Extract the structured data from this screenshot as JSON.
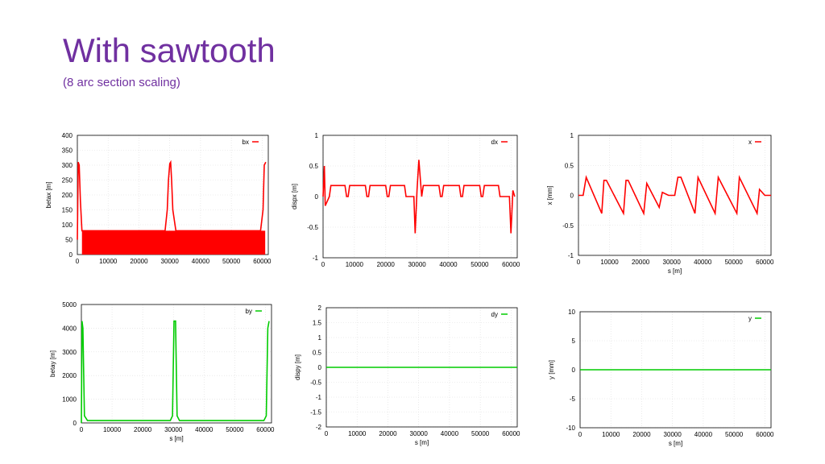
{
  "slide": {
    "title": "With sawtooth",
    "subtitle": "(8 arc section scaling)"
  },
  "chart_data": [
    {
      "type": "line",
      "title": "",
      "xlabel": "",
      "ylabel": "betax [m]",
      "xlim": [
        0,
        62000
      ],
      "ylim": [
        0,
        400
      ],
      "xticks": [
        "0",
        "10000",
        "20000",
        "30000",
        "40000",
        "50000",
        "60000"
      ],
      "yticks": [
        "0",
        "50",
        "100",
        "150",
        "200",
        "250",
        "300",
        "350",
        "400"
      ],
      "legend": "top-right",
      "grid": true,
      "series": [
        {
          "name": "bx",
          "color": "#ff0000",
          "x": [
            0,
            300,
            600,
            1000,
            1500,
            3000,
            10000,
            20000,
            28500,
            29200,
            29600,
            30000,
            30300,
            30600,
            31000,
            32000,
            40000,
            50000,
            59500,
            60300,
            60700,
            61200
          ],
          "y": [
            50,
            310,
            300,
            180,
            80,
            80,
            80,
            80,
            80,
            150,
            250,
            305,
            310,
            250,
            150,
            80,
            80,
            80,
            80,
            150,
            300,
            310
          ],
          "band_range": [
            0,
            80
          ]
        }
      ]
    },
    {
      "type": "line",
      "title": "",
      "xlabel": "",
      "ylabel": "dispx [m]",
      "xlim": [
        0,
        62000
      ],
      "ylim": [
        -1,
        1
      ],
      "xticks": [
        "0",
        "10000",
        "20000",
        "30000",
        "40000",
        "50000",
        "60000"
      ],
      "yticks": [
        "-1",
        "-0.5",
        "0",
        "0.5",
        "1"
      ],
      "legend": "top-right",
      "grid": true,
      "series": [
        {
          "name": "dx",
          "color": "#ff0000",
          "x": [
            0,
            400,
            700,
            2000,
            2500,
            7000,
            7500,
            8000,
            8500,
            13500,
            14000,
            14500,
            15000,
            20000,
            20500,
            21000,
            21500,
            26000,
            26500,
            29000,
            29400,
            30000,
            30600,
            31500,
            32000,
            32500,
            37000,
            37500,
            38000,
            38500,
            43500,
            44000,
            44500,
            45000,
            50000,
            50500,
            51000,
            51500,
            56000,
            56500,
            59500,
            60000,
            60600,
            61200
          ],
          "y": [
            0,
            0.5,
            -0.15,
            0,
            0.18,
            0.18,
            0,
            0,
            0.18,
            0.18,
            0,
            0,
            0.18,
            0.18,
            0,
            0,
            0.18,
            0.18,
            0,
            0,
            -0.6,
            0.1,
            0.6,
            0,
            0.18,
            0.18,
            0.18,
            0,
            0,
            0.18,
            0.18,
            0,
            0,
            0.18,
            0.18,
            0,
            0,
            0.18,
            0.18,
            0,
            0,
            -0.6,
            0.1,
            0
          ]
        }
      ]
    },
    {
      "type": "line",
      "title": "",
      "xlabel": "s [m]",
      "ylabel": "x [mm]",
      "xlim": [
        0,
        62000
      ],
      "ylim": [
        -1,
        1
      ],
      "xticks": [
        "0",
        "10000",
        "20000",
        "30000",
        "40000",
        "50000",
        "60000"
      ],
      "yticks": [
        "-1",
        "-0.5",
        "0",
        "0.5",
        "1"
      ],
      "legend": "top-right",
      "grid": true,
      "series": [
        {
          "name": "x",
          "color": "#ff0000",
          "x": [
            0,
            1500,
            2500,
            7500,
            8200,
            9000,
            14500,
            15300,
            16000,
            21000,
            22000,
            26000,
            27000,
            29000,
            31000,
            32000,
            33000,
            37500,
            38500,
            44000,
            45000,
            51000,
            51800,
            57500,
            58300,
            60000,
            62000
          ],
          "y": [
            0,
            0,
            0.3,
            -0.3,
            0.25,
            0.25,
            -0.3,
            0.25,
            0.25,
            -0.3,
            0.2,
            -0.2,
            0.05,
            0,
            0,
            0.3,
            0.3,
            -0.3,
            0.3,
            -0.3,
            0.3,
            -0.3,
            0.3,
            -0.3,
            0.1,
            0,
            0
          ]
        }
      ]
    },
    {
      "type": "line",
      "title": "",
      "xlabel": "s [m]",
      "ylabel": "betay [m]",
      "xlim": [
        0,
        62000
      ],
      "ylim": [
        0,
        5000
      ],
      "xticks": [
        "0",
        "10000",
        "20000",
        "30000",
        "40000",
        "50000",
        "60000"
      ],
      "yticks": [
        "0",
        "1000",
        "2000",
        "3000",
        "4000",
        "5000"
      ],
      "legend": "top-right",
      "grid": true,
      "series": [
        {
          "name": "by",
          "color": "#00cc00",
          "x": [
            0,
            200,
            500,
            1000,
            2000,
            10000,
            20000,
            29000,
            29700,
            30200,
            30700,
            31200,
            32000,
            40000,
            50000,
            59500,
            60300,
            60800,
            61200
          ],
          "y": [
            0,
            4300,
            4000,
            300,
            100,
            100,
            100,
            100,
            300,
            4300,
            4300,
            300,
            100,
            100,
            100,
            100,
            300,
            4000,
            4300
          ]
        }
      ]
    },
    {
      "type": "line",
      "title": "",
      "xlabel": "s [m]",
      "ylabel": "dispy [m]",
      "xlim": [
        0,
        62000
      ],
      "ylim": [
        -2,
        2
      ],
      "xticks": [
        "0",
        "10000",
        "20000",
        "30000",
        "40000",
        "50000",
        "60000"
      ],
      "yticks": [
        "-2",
        "-1.5",
        "-1",
        "-0.5",
        "0",
        "0.5",
        "1",
        "1.5",
        "2"
      ],
      "legend": "top-right",
      "grid": true,
      "series": [
        {
          "name": "dy",
          "color": "#00cc00",
          "x": [
            0,
            62000
          ],
          "y": [
            0,
            0
          ]
        }
      ]
    },
    {
      "type": "line",
      "title": "",
      "xlabel": "s [m]",
      "ylabel": "y [mm]",
      "xlim": [
        0,
        62000
      ],
      "ylim": [
        -10,
        10
      ],
      "xticks": [
        "0",
        "10000",
        "20000",
        "30000",
        "40000",
        "50000",
        "60000"
      ],
      "yticks": [
        "-10",
        "-5",
        "0",
        "5",
        "10"
      ],
      "legend": "top-right",
      "grid": true,
      "series": [
        {
          "name": "y",
          "color": "#00cc00",
          "x": [
            0,
            62000
          ],
          "y": [
            0,
            0
          ]
        }
      ]
    }
  ]
}
